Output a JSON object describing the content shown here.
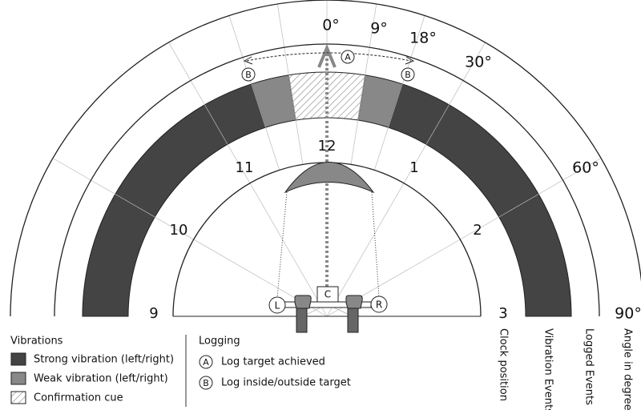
{
  "degree_labels": [
    "0°",
    "9°",
    "18°",
    "30°",
    "60°",
    "90°"
  ],
  "clock_labels": [
    "12",
    "11",
    "1",
    "10",
    "2",
    "9",
    "3"
  ],
  "axis_labels": [
    "Clock position",
    "Vibration Events",
    "Logged Events",
    "Angle in degrees"
  ],
  "markers": {
    "A": "A",
    "B": "B",
    "L": "L",
    "R": "R",
    "C": "C"
  },
  "legend": {
    "vibrations": {
      "title": "Vibrations",
      "items": [
        "Strong vibration (left/right)",
        "Weak vibration (left/right)",
        "Confirmation cue"
      ]
    },
    "logging": {
      "title": "Logging",
      "items": [
        {
          "marker": "A",
          "label": "Log target achieved"
        },
        {
          "marker": "B",
          "label": "Log inside/outside target"
        }
      ]
    }
  }
}
